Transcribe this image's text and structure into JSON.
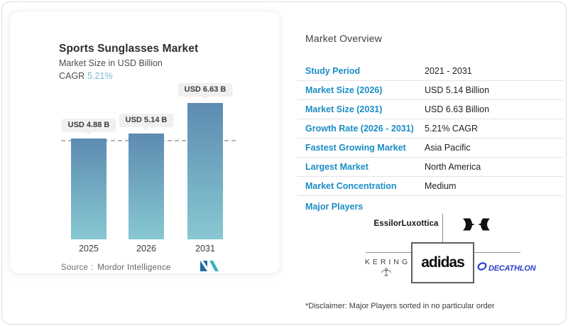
{
  "colors": {
    "accent_blue": "#1b8dc5",
    "cagr_teal": "#7db6cd",
    "bar_gradient_top": "#5d8bb1",
    "bar_gradient_bottom": "#87c8d2",
    "decathlon_blue": "#2b3ec6",
    "mordor_dark_blue": "#1e6ba8",
    "mordor_teal": "#38b2c3"
  },
  "chart_data": {
    "type": "bar",
    "title": "Sports Sunglasses Market",
    "subtitle": "Market Size in USD Billion",
    "cagr_label": "CAGR",
    "cagr_value": "5.21%",
    "categories": [
      "2025",
      "2026",
      "2031"
    ],
    "values": [
      4.88,
      5.14,
      6.63
    ],
    "bar_labels": [
      "USD 4.88 B",
      "USD 5.14 B",
      "USD 6.63 B"
    ],
    "ylim": [
      0,
      7
    ],
    "dashed_reference_value": 4.88,
    "legend": "none",
    "source_label": "Source :",
    "source_value": "Mordor Intelligence"
  },
  "overview": {
    "heading": "Market Overview",
    "rows": [
      {
        "label": "Study Period",
        "value": "2021 - 2031"
      },
      {
        "label": "Market Size (2026)",
        "value": "USD 5.14 Billion"
      },
      {
        "label": "Market Size (2031)",
        "value": "USD 6.63 Billion"
      },
      {
        "label": "Growth Rate (2026 - 2031)",
        "value": "5.21% CAGR"
      },
      {
        "label": "Fastest Growing Market",
        "value": "Asia Pacific"
      },
      {
        "label": "Largest Market",
        "value": "North America"
      },
      {
        "label": "Market Concentration",
        "value": "Medium"
      }
    ]
  },
  "major_players": {
    "heading": "Major Players",
    "players": [
      "EssilorLuxottica",
      "Under Armour",
      "Kering",
      "adidas",
      "Decathlon"
    ],
    "essilor_label": "EssilorLuxottica",
    "kering_label": "KERING",
    "adidas_label": "adidas",
    "decathlon_label": "DECATHLON",
    "disclaimer": "*Disclaimer: Major Players sorted in no particular order"
  }
}
